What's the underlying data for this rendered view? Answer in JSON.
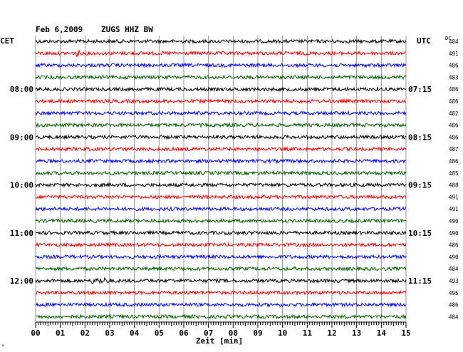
{
  "header": {
    "date": "Feb 6,2009",
    "station": "ZUGS HHZ BW",
    "left_tz": "CET",
    "right_tz": "UTC",
    "dc_label": "DC"
  },
  "footer": {
    "xlabel": "Zeit [min]",
    "corner_mark": "*"
  },
  "colors": {
    "trace_cycle": [
      "#000000",
      "#ff0000",
      "#0000ff",
      "#006400"
    ],
    "grid": "#808080",
    "text": "#000000"
  },
  "chart_data": {
    "type": "line",
    "title": "Feb 6,2009   ZUGS HHZ BW",
    "xlabel": "Zeit [min]",
    "xlim": [
      0,
      15
    ],
    "x_ticks": [
      "00",
      "01",
      "02",
      "03",
      "04",
      "05",
      "06",
      "07",
      "08",
      "09",
      "10",
      "11",
      "12",
      "13",
      "14",
      "15"
    ],
    "traces_per_hour": 4,
    "trace_count": 24,
    "left_time_labels": [
      {
        "trace": 4,
        "label": "08:00"
      },
      {
        "trace": 8,
        "label": "09:00"
      },
      {
        "trace": 12,
        "label": "10:00"
      },
      {
        "trace": 16,
        "label": "11:00"
      },
      {
        "trace": 20,
        "label": "12:00"
      }
    ],
    "right_time_labels": [
      {
        "trace": 4,
        "label": "07:15"
      },
      {
        "trace": 8,
        "label": "08:15"
      },
      {
        "trace": 12,
        "label": "09:15"
      },
      {
        "trace": 16,
        "label": "10:15"
      },
      {
        "trace": 20,
        "label": "11:15"
      }
    ],
    "dc_offsets": [
      484,
      491,
      486,
      483,
      486,
      486,
      482,
      486,
      486,
      487,
      486,
      485,
      488,
      491,
      491,
      490,
      490,
      486,
      490,
      484,
      493,
      495,
      486,
      484
    ],
    "events": [
      {
        "trace": 1,
        "minute": 1.7,
        "type": "spike"
      },
      {
        "trace": 20,
        "minute": 2.6,
        "type": "burst"
      }
    ]
  }
}
